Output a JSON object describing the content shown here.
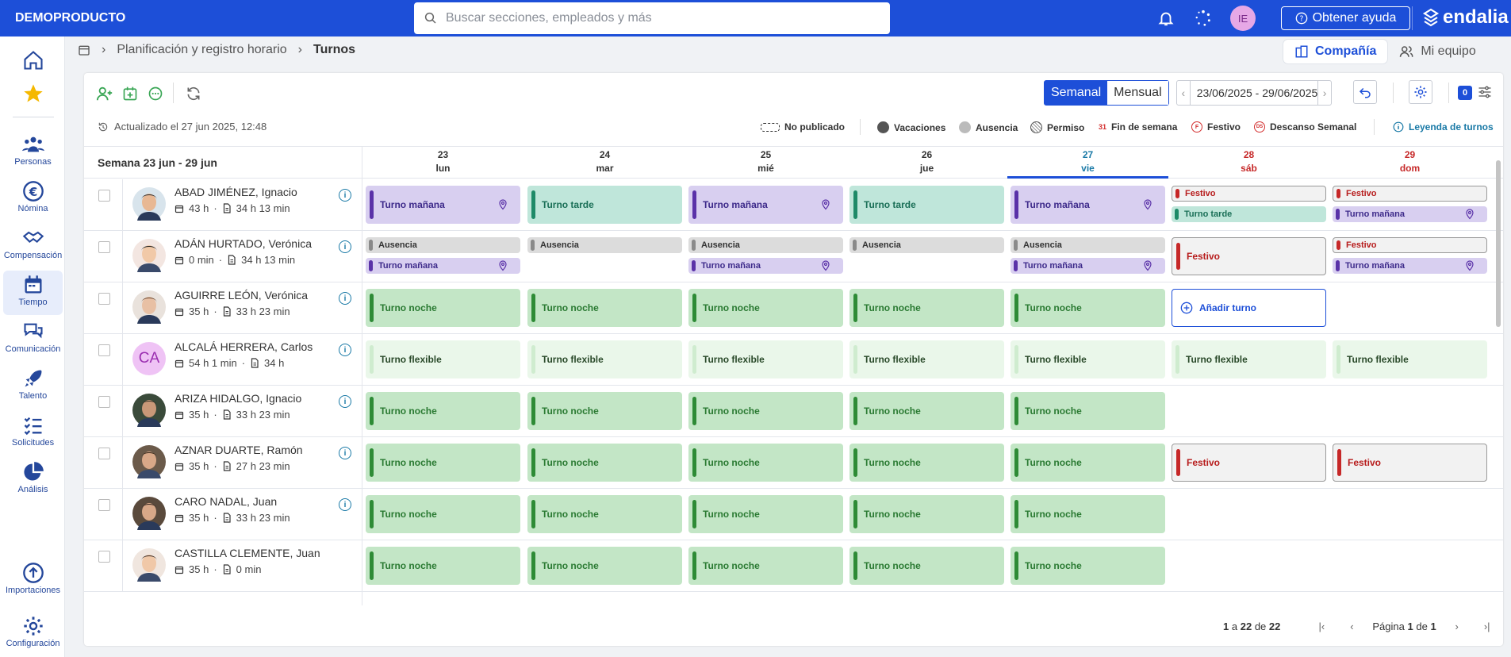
{
  "app": {
    "brand": "DEMOPRODUCTO",
    "search_placeholder": "Buscar secciones, empleados y más",
    "user_initials": "IE",
    "help_label": "Obtener ayuda",
    "logo_text": "endalia",
    "colors": {
      "primary": "#1d4fd8",
      "link": "#1979a6",
      "weekend": "#c62828"
    }
  },
  "sidebar": {
    "items": [
      {
        "label": "",
        "icon": "home-icon"
      },
      {
        "label": "",
        "icon": "star-icon"
      },
      {
        "label": "Personas",
        "icon": "people-icon"
      },
      {
        "label": "Nómina",
        "icon": "euro-icon"
      },
      {
        "label": "Compensación",
        "icon": "handshake-icon"
      },
      {
        "label": "Tiempo",
        "icon": "calendar-icon",
        "active": true
      },
      {
        "label": "Comunicación",
        "icon": "chat-icon"
      },
      {
        "label": "Talento",
        "icon": "rocket-icon"
      },
      {
        "label": "Solicitudes",
        "icon": "checklist-icon"
      },
      {
        "label": "Análisis",
        "icon": "pie-chart-icon"
      },
      {
        "label": "Importaciones",
        "icon": "upload-icon"
      },
      {
        "label": "Configuración",
        "icon": "gear-icon"
      }
    ]
  },
  "breadcrumb": {
    "section": "Planificación y registro horario",
    "current": "Turnos"
  },
  "view_tabs": {
    "company": "Compañía",
    "team": "Mi equipo"
  },
  "toolbar": {
    "weekly": "Semanal",
    "monthly": "Mensual",
    "date_range": "23/06/2025 - 29/06/2025",
    "filter_count": "0"
  },
  "legend": {
    "updated": "Actualizado el 27 jun 2025, 12:48",
    "unpublished": "No publicado",
    "vacations": "Vacaciones",
    "absence": "Ausencia",
    "permit": "Permiso",
    "weekend_icon": "31",
    "weekend": "Fin de semana",
    "holiday_icon": "F",
    "holiday": "Festivo",
    "rest_icon": "DS",
    "rest": "Descanso Semanal",
    "link": "Leyenda de turnos"
  },
  "grid": {
    "week_label": "Semana 23 jun - 29 jun",
    "days": [
      {
        "num": "23",
        "name": "lun"
      },
      {
        "num": "24",
        "name": "mar"
      },
      {
        "num": "25",
        "name": "mié"
      },
      {
        "num": "26",
        "name": "jue"
      },
      {
        "num": "27",
        "name": "vie",
        "today": true
      },
      {
        "num": "28",
        "name": "sáb",
        "weekend": true
      },
      {
        "num": "29",
        "name": "dom",
        "weekend": true
      }
    ],
    "employees": [
      {
        "name": "ABAD JIMÉNEZ, Ignacio",
        "planned": "43 h",
        "worked": "34 h 13 min",
        "avatar": "photo-1"
      },
      {
        "name": "ADÁN HURTADO, Verónica",
        "planned": "0 min",
        "worked": "34 h 13 min",
        "avatar": "photo-2"
      },
      {
        "name": "AGUIRRE LEÓN, Verónica",
        "planned": "35 h",
        "worked": "33 h 23 min",
        "avatar": "photo-3"
      },
      {
        "name": "ALCALÁ HERRERA, Carlos",
        "planned": "54 h 1 min",
        "worked": "34 h",
        "initials": "CA"
      },
      {
        "name": "ARIZA HIDALGO, Ignacio",
        "planned": "35 h",
        "worked": "33 h 23 min",
        "avatar": "photo-4"
      },
      {
        "name": "AZNAR DUARTE, Ramón",
        "planned": "35 h",
        "worked": "27 h 23 min",
        "avatar": "photo-5"
      },
      {
        "name": "CARO NADAL, Juan",
        "planned": "35 h",
        "worked": "33 h 23 min",
        "avatar": "photo-6"
      },
      {
        "name": "CASTILLA CLEMENTE, Juan",
        "planned": "35 h",
        "worked": "0 min",
        "avatar": "photo-7"
      }
    ],
    "shift_labels": {
      "manana": "Turno mañana",
      "tarde": "Turno tarde",
      "noche": "Turno noche",
      "flexible": "Turno flexible",
      "ausencia": "Ausencia",
      "festivo": "Festivo",
      "add": "Añadir turno"
    }
  },
  "pagination": {
    "from": "1",
    "a": "a",
    "to": "22",
    "de": "de",
    "total": "22",
    "page_word": "Página",
    "page": "1",
    "page_de": "de",
    "pages": "1"
  }
}
